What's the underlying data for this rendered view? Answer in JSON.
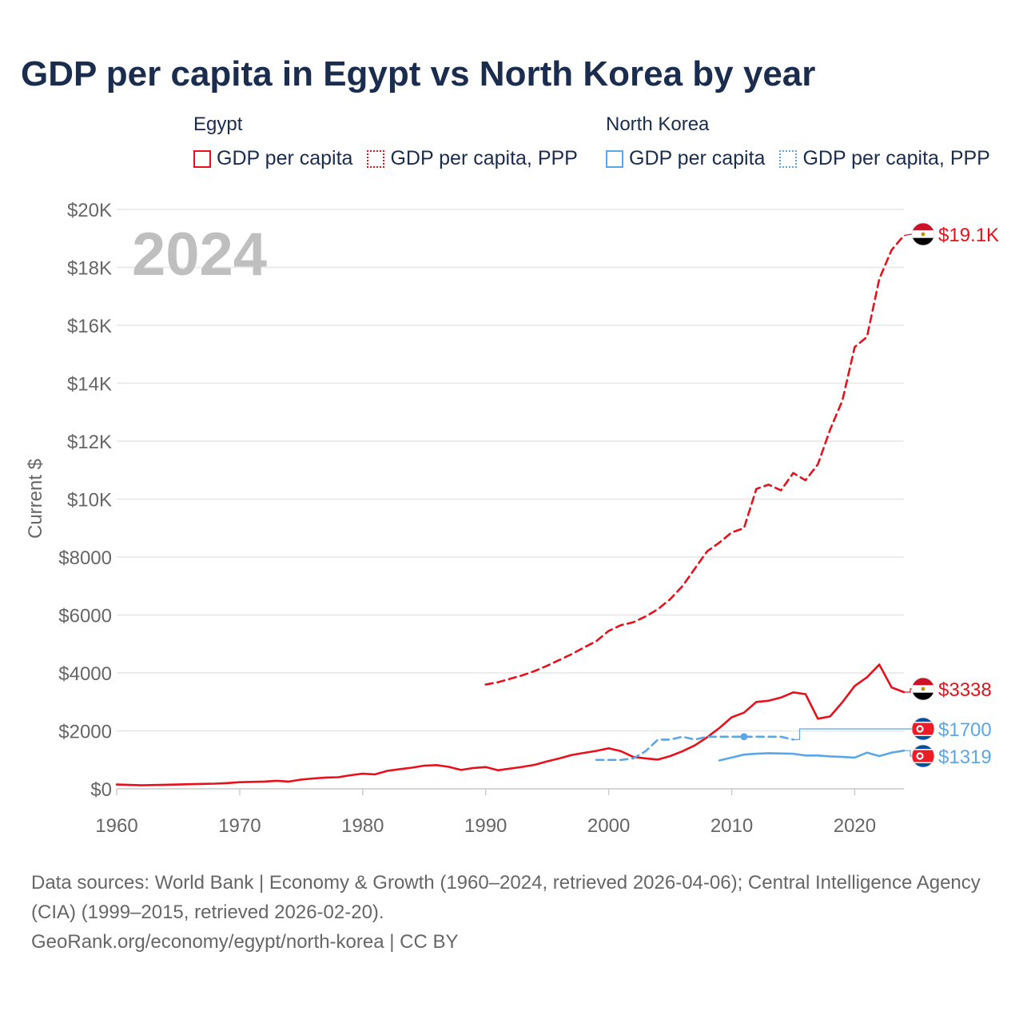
{
  "title": "GDP per capita in Egypt vs North Korea by year",
  "legend": {
    "groups": [
      {
        "country": "Egypt",
        "color": "#e8101b",
        "items": [
          {
            "label": "GDP per capita",
            "style": "solid"
          },
          {
            "label": "GDP per capita, PPP",
            "style": "dotted"
          }
        ]
      },
      {
        "country": "North Korea",
        "color": "#5ba6e6",
        "items": [
          {
            "label": "GDP per capita",
            "style": "solid"
          },
          {
            "label": "GDP per capita, PPP",
            "style": "dotted"
          }
        ]
      }
    ]
  },
  "year_overlay": "2024",
  "colors": {
    "egypt": "#e8101b",
    "north_korea": "#5ba6e6",
    "grid": "#e6e6e6",
    "axis_text": "#666666"
  },
  "chart_data": {
    "type": "line",
    "title": "GDP per capita in Egypt vs North Korea by year",
    "xlabel": "",
    "ylabel": "Current $",
    "xlim": [
      1960,
      2024
    ],
    "ylim": [
      0,
      20000
    ],
    "x_ticks": [
      1960,
      1970,
      1980,
      1990,
      2000,
      2010,
      2020
    ],
    "x_tick_labels": [
      "1960",
      "1970",
      "1980",
      "1990",
      "2000",
      "2010",
      "2020"
    ],
    "y_ticks": [
      0,
      2000,
      4000,
      6000,
      8000,
      10000,
      12000,
      14000,
      16000,
      18000,
      20000
    ],
    "y_tick_labels": [
      "$0",
      "$2000",
      "$4000",
      "$6000",
      "$8000",
      "$10K",
      "$12K",
      "$14K",
      "$16K",
      "$18K",
      "$20K"
    ],
    "series": [
      {
        "name": "Egypt GDP per capita",
        "country": "Egypt",
        "color": "#e8101b",
        "dash": "solid",
        "x": [
          1960,
          1962,
          1964,
          1966,
          1968,
          1969,
          1970,
          1972,
          1973,
          1974,
          1975,
          1976,
          1977,
          1978,
          1979,
          1980,
          1981,
          1982,
          1983,
          1984,
          1985,
          1986,
          1987,
          1988,
          1989,
          1990,
          1991,
          1992,
          1993,
          1994,
          1995,
          1996,
          1997,
          1998,
          1999,
          2000,
          2001,
          2002,
          2003,
          2004,
          2005,
          2006,
          2007,
          2008,
          2009,
          2010,
          2011,
          2012,
          2013,
          2014,
          2015,
          2016,
          2017,
          2018,
          2019,
          2020,
          2021,
          2022,
          2023,
          2024
        ],
        "y": [
          150,
          120,
          140,
          160,
          180,
          200,
          230,
          250,
          280,
          250,
          320,
          360,
          390,
          400,
          470,
          520,
          500,
          620,
          680,
          730,
          800,
          820,
          760,
          650,
          720,
          750,
          640,
          700,
          760,
          830,
          950,
          1050,
          1170,
          1240,
          1310,
          1400,
          1300,
          1100,
          1050,
          1010,
          1130,
          1300,
          1500,
          1780,
          2100,
          2470,
          2630,
          3000,
          3040,
          3150,
          3330,
          3270,
          2420,
          2500,
          2990,
          3550,
          3850,
          4290,
          3500,
          3338
        ]
      },
      {
        "name": "Egypt GDP per capita, PPP",
        "country": "Egypt",
        "color": "#e8101b",
        "dash": "dashed",
        "x": [
          1990,
          1991,
          1992,
          1993,
          1994,
          1995,
          1996,
          1997,
          1998,
          1999,
          2000,
          2001,
          2002,
          2003,
          2004,
          2005,
          2006,
          2007,
          2008,
          2009,
          2010,
          2011,
          2012,
          2013,
          2014,
          2015,
          2016,
          2017,
          2018,
          2019,
          2020,
          2021,
          2022,
          2023,
          2024
        ],
        "y": [
          3600,
          3680,
          3800,
          3920,
          4070,
          4250,
          4450,
          4650,
          4880,
          5100,
          5450,
          5650,
          5750,
          5950,
          6200,
          6550,
          7000,
          7600,
          8200,
          8500,
          8850,
          9000,
          10350,
          10500,
          10300,
          10900,
          10650,
          11200,
          12400,
          13400,
          15250,
          15600,
          17600,
          18600,
          19100
        ]
      },
      {
        "name": "North Korea GDP per capita",
        "country": "North Korea",
        "color": "#5ba6e6",
        "dash": "solid",
        "x": [
          2009,
          2010,
          2011,
          2012,
          2013,
          2014,
          2015,
          2016,
          2017,
          2018,
          2019,
          2020,
          2021,
          2022,
          2023,
          2024
        ],
        "y": [
          980,
          1080,
          1180,
          1210,
          1230,
          1220,
          1210,
          1150,
          1150,
          1120,
          1100,
          1080,
          1250,
          1130,
          1250,
          1319
        ]
      },
      {
        "name": "North Korea GDP per capita, PPP",
        "country": "North Korea",
        "color": "#5ba6e6",
        "dash": "dashed",
        "x": [
          1999,
          2000,
          2001,
          2002,
          2003,
          2004,
          2005,
          2006,
          2007,
          2008,
          2009,
          2010,
          2011,
          2012,
          2013,
          2014,
          2015
        ],
        "y": [
          1000,
          1000,
          1000,
          1050,
          1300,
          1700,
          1700,
          1800,
          1700,
          1800,
          1800,
          1800,
          1800,
          1800,
          1800,
          1800,
          1700
        ]
      }
    ],
    "end_labels": [
      {
        "series": "Egypt GDP per capita, PPP",
        "text": "$19.1K",
        "value": 19100,
        "color": "#e8101b"
      },
      {
        "series": "Egypt GDP per capita",
        "text": "$3338",
        "value": 3338,
        "color": "#e8101b"
      },
      {
        "series": "North Korea GDP per capita, PPP",
        "text": "$1700",
        "value": 1700,
        "color": "#5ba6e6"
      },
      {
        "series": "North Korea GDP per capita",
        "text": "$1319",
        "value": 1319,
        "color": "#5ba6e6"
      }
    ]
  },
  "footer": {
    "sources": "Data sources: World Bank | Economy & Growth (1960–2024, retrieved 2026-04-06); Central Intelligence Agency (CIA) (1999–2015, retrieved 2026-02-20).",
    "attribution": "GeoRank.org/economy/egypt/north-korea | CC BY"
  }
}
